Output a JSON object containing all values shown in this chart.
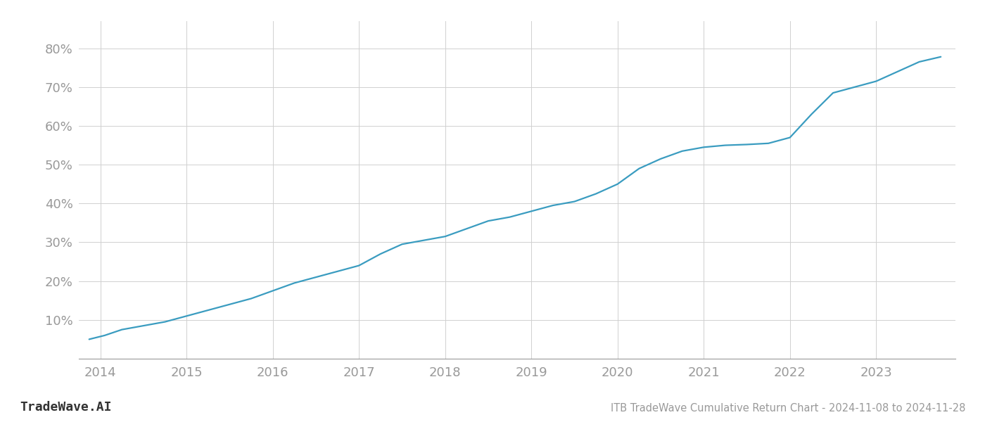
{
  "title": "ITB TradeWave Cumulative Return Chart - 2024-11-08 to 2024-11-28",
  "watermark": "TradeWave.AI",
  "line_color": "#3a9cc0",
  "background_color": "#ffffff",
  "grid_color": "#d0d0d0",
  "x_years": [
    2014,
    2015,
    2016,
    2017,
    2018,
    2019,
    2020,
    2021,
    2022,
    2023
  ],
  "x_data": [
    2013.87,
    2014.05,
    2014.25,
    2014.5,
    2014.75,
    2015.0,
    2015.25,
    2015.5,
    2015.75,
    2016.0,
    2016.25,
    2016.5,
    2016.75,
    2017.0,
    2017.25,
    2017.5,
    2017.75,
    2018.0,
    2018.25,
    2018.5,
    2018.75,
    2019.0,
    2019.25,
    2019.5,
    2019.75,
    2020.0,
    2020.25,
    2020.5,
    2020.75,
    2021.0,
    2021.25,
    2021.5,
    2021.75,
    2022.0,
    2022.25,
    2022.5,
    2022.75,
    2023.0,
    2023.25,
    2023.5,
    2023.75
  ],
  "y_data": [
    5.0,
    6.0,
    7.5,
    8.5,
    9.5,
    11.0,
    12.5,
    14.0,
    15.5,
    17.5,
    19.5,
    21.0,
    22.5,
    24.0,
    27.0,
    29.5,
    30.5,
    31.5,
    33.5,
    35.5,
    36.5,
    38.0,
    39.5,
    40.5,
    42.5,
    45.0,
    49.0,
    51.5,
    53.5,
    54.5,
    55.0,
    55.2,
    55.5,
    57.0,
    63.0,
    68.5,
    70.0,
    71.5,
    74.0,
    76.5,
    77.8
  ],
  "yticks": [
    10,
    20,
    30,
    40,
    50,
    60,
    70,
    80
  ],
  "ylim": [
    0,
    87
  ],
  "xlim": [
    2013.75,
    2023.92
  ],
  "tick_color": "#999999",
  "title_color": "#999999",
  "watermark_color": "#333333",
  "line_width": 1.6,
  "title_fontsize": 10.5,
  "tick_fontsize": 13,
  "watermark_fontsize": 13
}
